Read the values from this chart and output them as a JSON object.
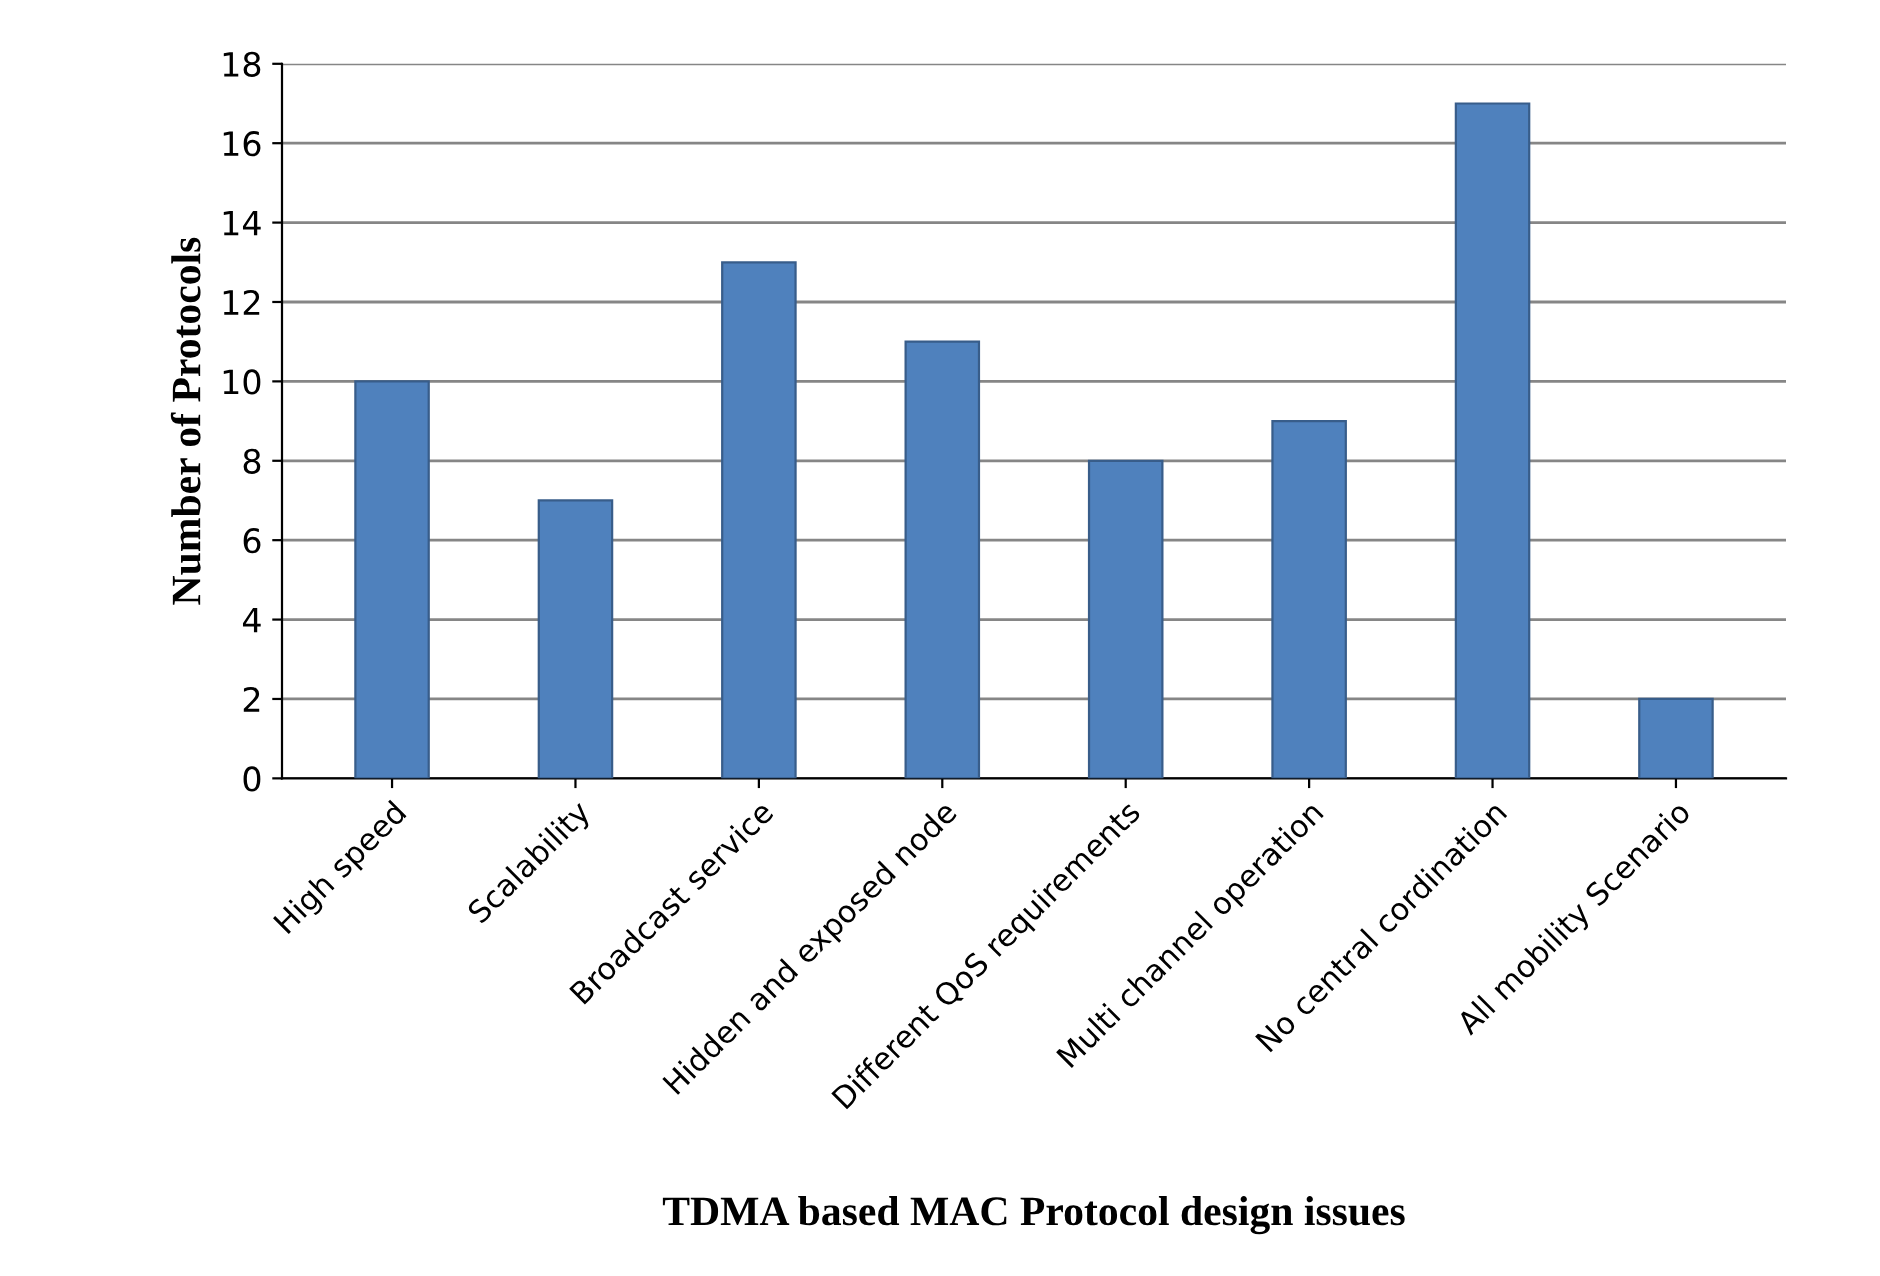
{
  "chart_data": {
    "type": "bar",
    "categories": [
      "High speed",
      "Scalability",
      "Broadcast service",
      "Hidden and exposed node",
      "Different QoS requirements",
      "Multi channel operation",
      "No central cordination",
      "All mobility Scenario"
    ],
    "values": [
      10,
      7,
      13,
      11,
      8,
      9,
      17,
      2
    ],
    "color": "#4f81bd",
    "xlabel": "TDMA based MAC Protocol design issues",
    "ylabel": "Number of Protocols",
    "ylim": [
      0,
      18
    ],
    "yticks": [
      0,
      2,
      4,
      6,
      8,
      10,
      12,
      14,
      16,
      18
    ],
    "grid": "y",
    "legend": false
  }
}
